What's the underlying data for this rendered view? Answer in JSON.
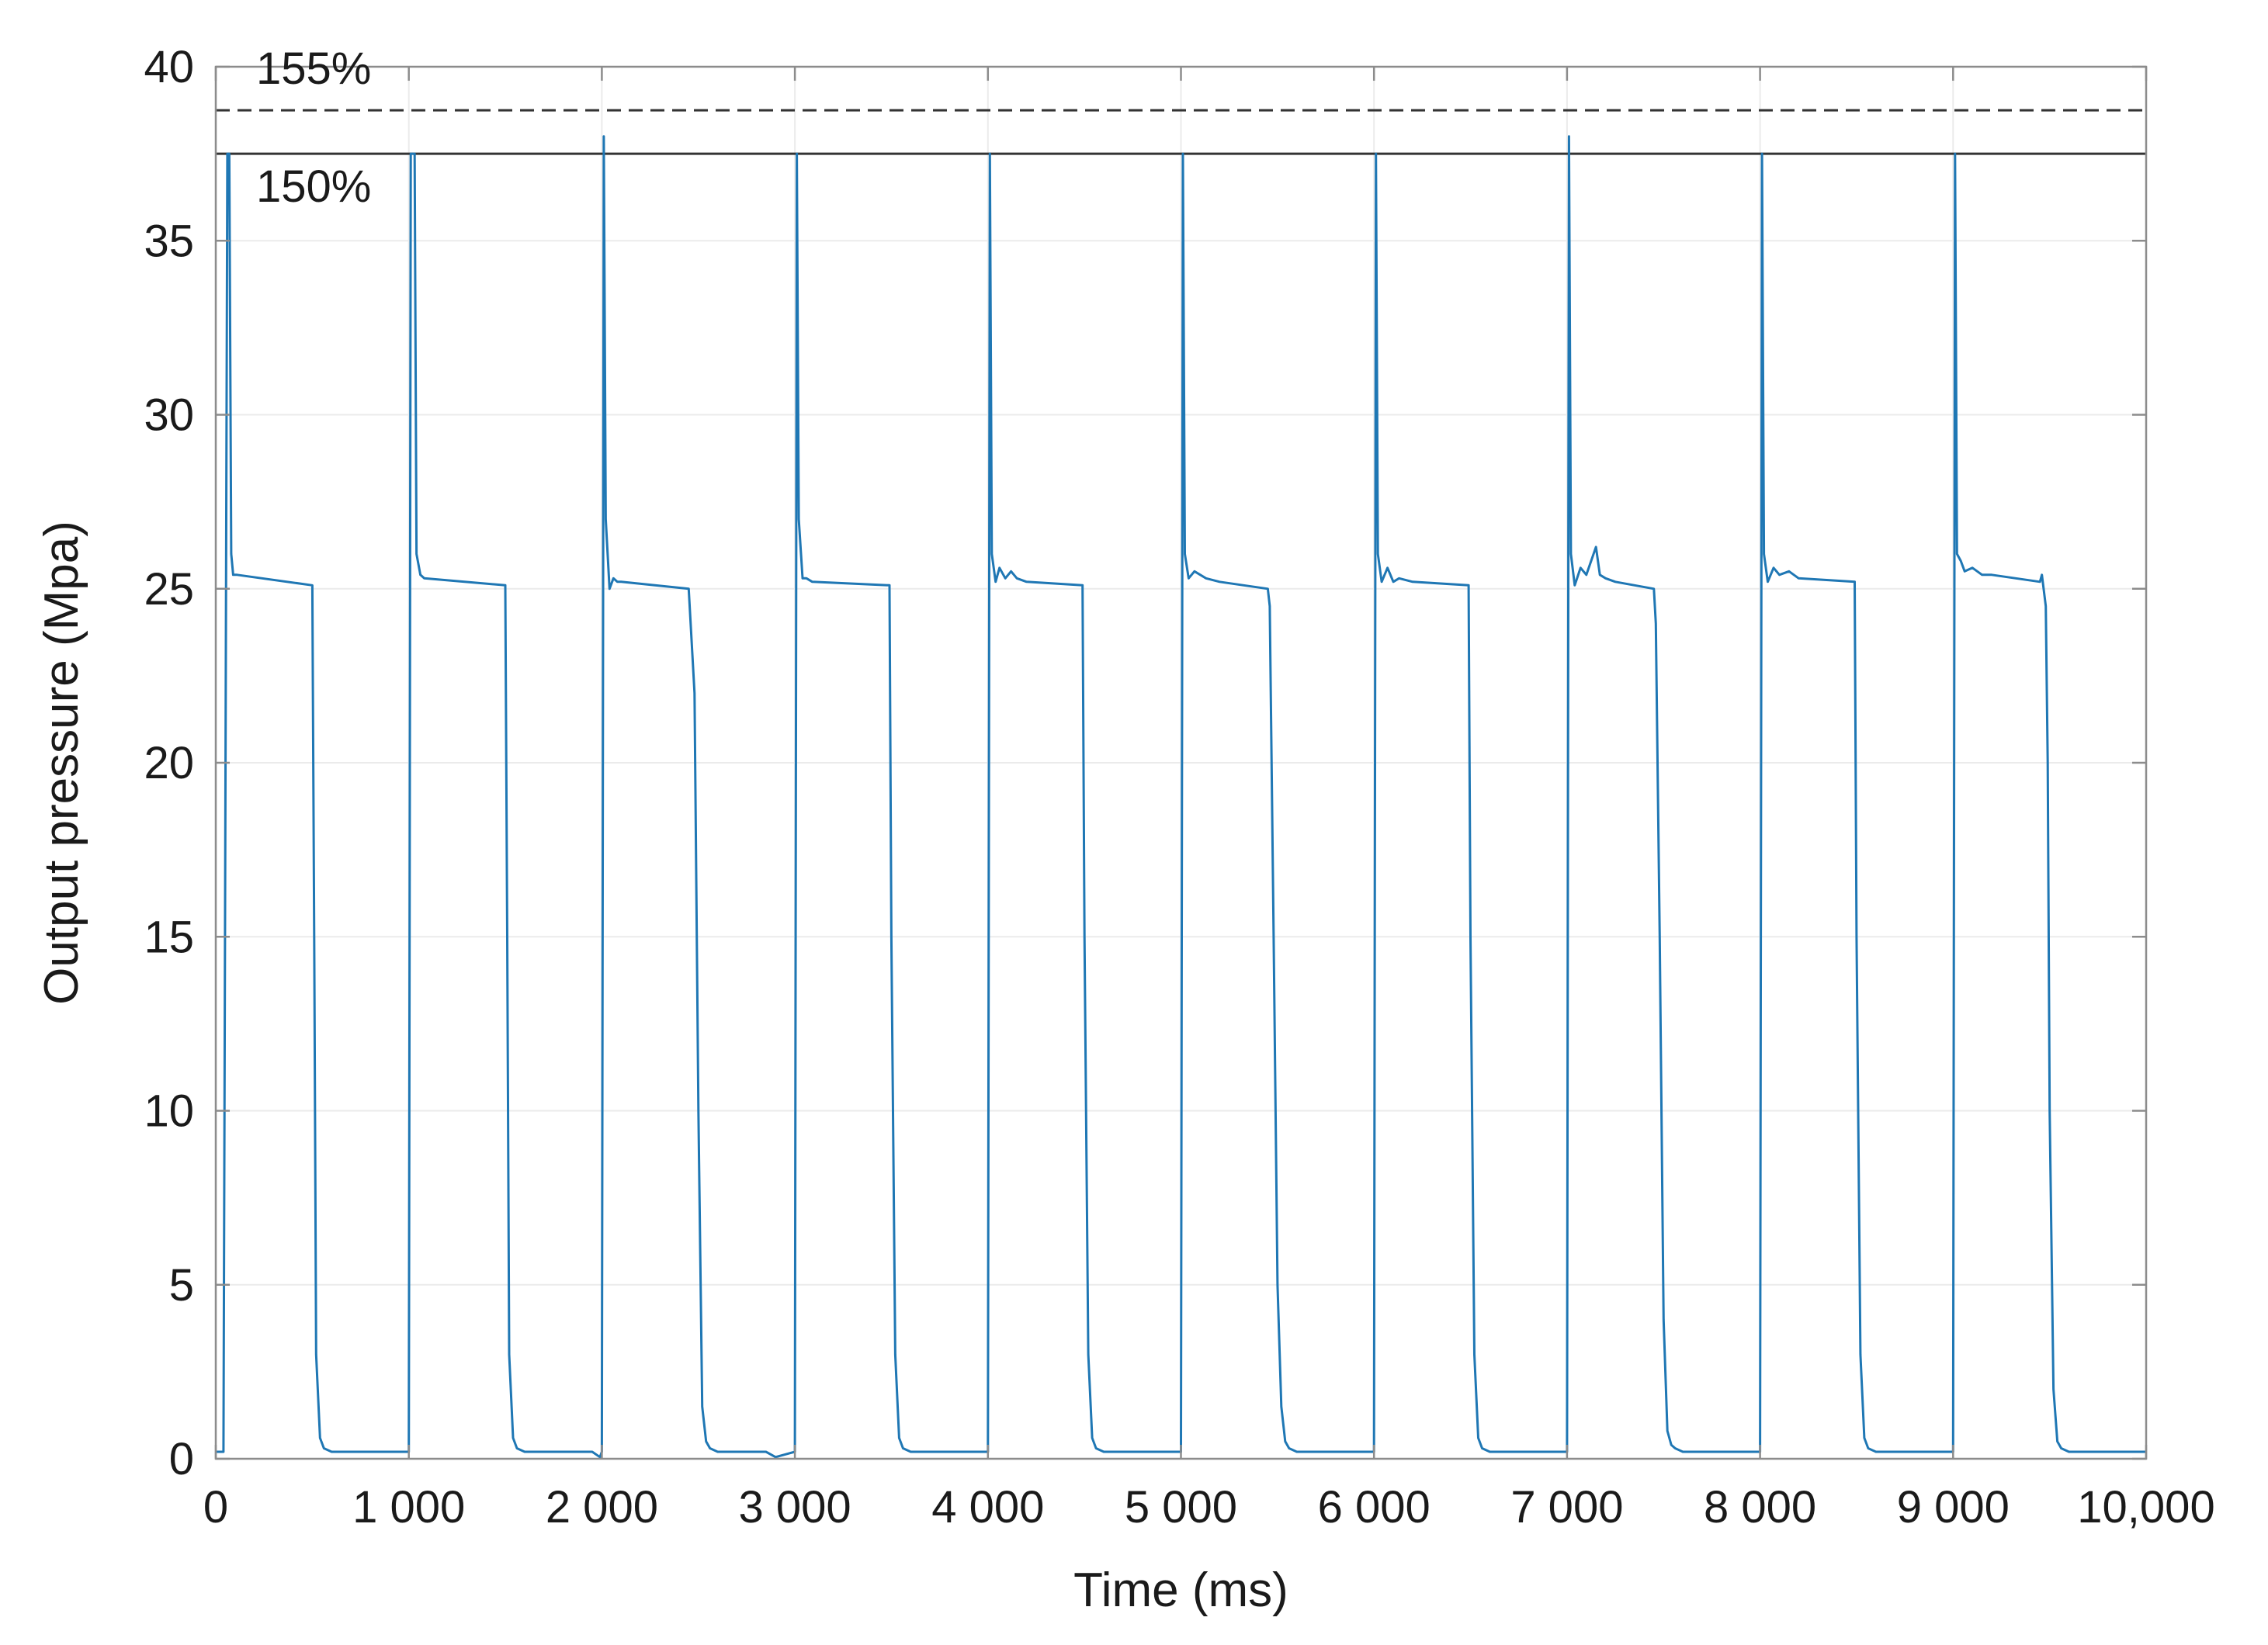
{
  "chart_data": {
    "type": "line",
    "title": "",
    "xlabel": "Time (ms)",
    "ylabel": "Output pressure (Mpa)",
    "xlim": [
      0,
      10000
    ],
    "ylim": [
      0,
      40
    ],
    "grid": true,
    "x_ticks": [
      0,
      1000,
      2000,
      3000,
      4000,
      5000,
      6000,
      7000,
      8000,
      9000,
      10000
    ],
    "x_tick_labels": [
      "0",
      "1 000",
      "2 000",
      "3 000",
      "4 000",
      "5 000",
      "6 000",
      "7 000",
      "8 000",
      "9 000",
      "10,000"
    ],
    "y_ticks": [
      0,
      5,
      10,
      15,
      20,
      25,
      30,
      35,
      40
    ],
    "y_tick_labels": [
      "0",
      "5",
      "10",
      "15",
      "20",
      "25",
      "30",
      "35",
      "40"
    ],
    "reference_lines": [
      {
        "label": "155%",
        "y": 38.75,
        "style": "dashed",
        "color": "#333333"
      },
      {
        "label": "150%",
        "y": 37.5,
        "style": "solid",
        "color": "#333333"
      }
    ],
    "series": [
      {
        "color": "#1f77b4",
        "x": [
          0,
          40,
          60,
          70,
          80,
          90,
          110,
          500,
          510,
          520,
          540,
          560,
          600,
          650,
          1000,
          1010,
          1030,
          1040,
          1060,
          1080,
          1500,
          1510,
          1520,
          1540,
          1560,
          1600,
          1950,
          1990,
          2000,
          2010,
          2020,
          2040,
          2060,
          2080,
          2100,
          2450,
          2480,
          2500,
          2520,
          2540,
          2560,
          2600,
          2850,
          2900,
          3000,
          3010,
          3020,
          3040,
          3060,
          3090,
          3490,
          3500,
          3520,
          3540,
          3560,
          3600,
          4000,
          4010,
          4020,
          4040,
          4060,
          4090,
          4120,
          4150,
          4200,
          4490,
          4500,
          4520,
          4540,
          4560,
          4600,
          5000,
          5010,
          5020,
          5040,
          5070,
          5130,
          5200,
          5450,
          5460,
          5480,
          5500,
          5520,
          5540,
          5560,
          5600,
          6000,
          6010,
          6020,
          6040,
          6070,
          6100,
          6130,
          6200,
          6490,
          6500,
          6520,
          6540,
          6560,
          6600,
          7000,
          7010,
          7020,
          7040,
          7070,
          7100,
          7150,
          7170,
          7200,
          7250,
          7450,
          7460,
          7480,
          7500,
          7520,
          7540,
          7560,
          7600,
          8000,
          8010,
          8020,
          8040,
          8070,
          8100,
          8150,
          8200,
          8490,
          8500,
          8520,
          8540,
          8560,
          8600,
          9000,
          9010,
          9020,
          9040,
          9060,
          9100,
          9150,
          9200,
          9450,
          9460,
          9480,
          9490,
          9500,
          9520,
          9540,
          9560,
          9600,
          10000
        ],
        "y": [
          0.2,
          0.2,
          37.5,
          37.5,
          26,
          25.4,
          25.4,
          25.1,
          15,
          3,
          0.6,
          0.3,
          0.2,
          0.2,
          0.2,
          37.5,
          37.5,
          26,
          25.4,
          25.3,
          25.1,
          15,
          3,
          0.6,
          0.3,
          0.2,
          0.2,
          0.05,
          0.2,
          38,
          27,
          25,
          25.3,
          25.2,
          25.2,
          25.0,
          22,
          10,
          1.5,
          0.5,
          0.3,
          0.2,
          0.2,
          0.05,
          0.2,
          37.5,
          27,
          25.3,
          25.3,
          25.2,
          25.1,
          15,
          3,
          0.6,
          0.3,
          0.2,
          0.2,
          37.5,
          26,
          25.2,
          25.6,
          25.3,
          25.5,
          25.3,
          25.2,
          25.1,
          15,
          3,
          0.6,
          0.3,
          0.2,
          0.2,
          37.5,
          26,
          25.3,
          25.5,
          25.3,
          25.2,
          25.0,
          24.5,
          15,
          5,
          1.5,
          0.5,
          0.3,
          0.2,
          0.2,
          37.5,
          26,
          25.2,
          25.6,
          25.2,
          25.3,
          25.2,
          25.1,
          15,
          3,
          0.6,
          0.3,
          0.2,
          0.2,
          38,
          26,
          25.1,
          25.6,
          25.4,
          26.2,
          25.4,
          25.3,
          25.2,
          25.0,
          24,
          15,
          4,
          0.8,
          0.4,
          0.3,
          0.2,
          0.2,
          37.5,
          26,
          25.2,
          25.6,
          25.4,
          25.5,
          25.3,
          25.2,
          15,
          3,
          0.6,
          0.3,
          0.2,
          0.2,
          37.5,
          26,
          25.8,
          25.5,
          25.6,
          25.4,
          25.4,
          25.2,
          25.4,
          24.5,
          20,
          10,
          2,
          0.5,
          0.3,
          0.2,
          0.2
        ]
      }
    ]
  }
}
